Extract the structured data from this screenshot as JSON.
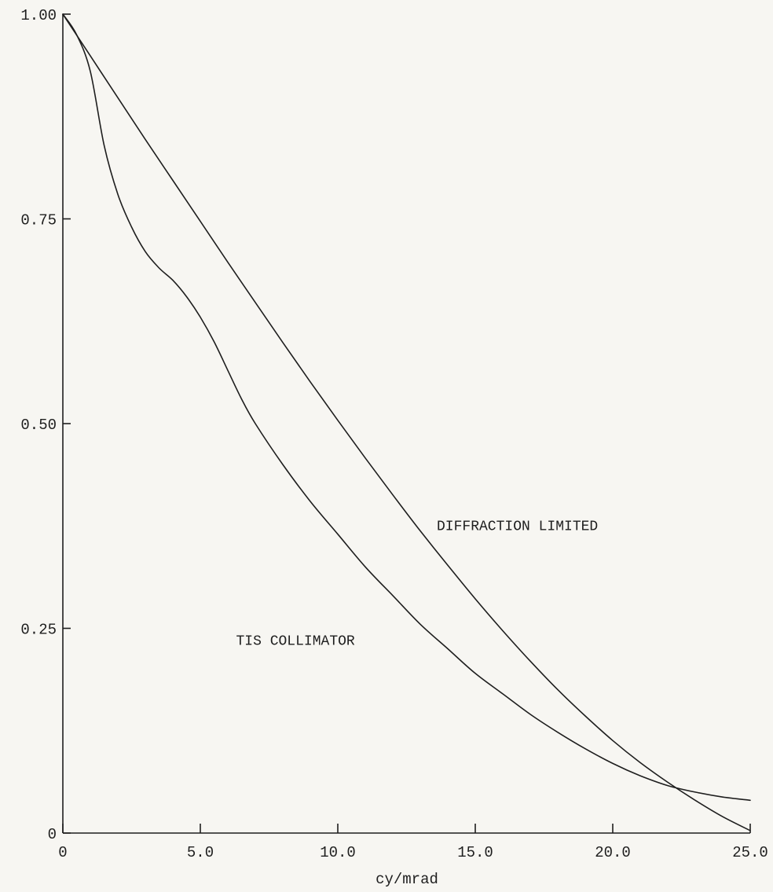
{
  "chart_data": {
    "type": "line",
    "title": "",
    "xlabel": "cy/mrad",
    "ylabel": "",
    "xlim": [
      0,
      25
    ],
    "ylim": [
      0,
      1
    ],
    "grid": false,
    "x_ticks": [
      {
        "value": 0,
        "label": "0"
      },
      {
        "value": 5,
        "label": "5.0"
      },
      {
        "value": 10,
        "label": "10.0"
      },
      {
        "value": 15,
        "label": "15.0"
      },
      {
        "value": 20,
        "label": "20.0"
      },
      {
        "value": 25,
        "label": "25.0"
      }
    ],
    "y_ticks": [
      {
        "value": 0,
        "label": "0"
      },
      {
        "value": 0.25,
        "label": "0.25"
      },
      {
        "value": 0.5,
        "label": "0.50"
      },
      {
        "value": 0.75,
        "label": "0.75"
      },
      {
        "value": 1.0,
        "label": "1.00"
      }
    ],
    "series": [
      {
        "label": "DIFFRACTION LIMITED",
        "label_at": [
          13.6,
          0.37
        ],
        "x": [
          0,
          1,
          2,
          3,
          4,
          5,
          6,
          7,
          8,
          9,
          10,
          11,
          12,
          13,
          14,
          15,
          16,
          17,
          18,
          19,
          20,
          21,
          22,
          23,
          24,
          25
        ],
        "y": [
          1.0,
          0.949,
          0.898,
          0.847,
          0.797,
          0.747,
          0.697,
          0.648,
          0.599,
          0.551,
          0.504,
          0.458,
          0.413,
          0.369,
          0.327,
          0.286,
          0.247,
          0.21,
          0.175,
          0.143,
          0.113,
          0.086,
          0.062,
          0.04,
          0.02,
          0.003
        ]
      },
      {
        "label": "TIS COLLIMATOR",
        "label_at": [
          6.3,
          0.23
        ],
        "x": [
          0,
          0.5,
          1.0,
          1.5,
          2.0,
          2.5,
          3.0,
          3.5,
          4.0,
          4.5,
          5.0,
          5.5,
          6.0,
          6.5,
          7.0,
          8.0,
          9.0,
          10.0,
          11.0,
          12.0,
          13.0,
          14.0,
          15.0,
          16.0,
          17.0,
          18.0,
          19.0,
          20.0,
          21.0,
          22.0,
          23.0,
          24.0,
          25.0
        ],
        "y": [
          1.0,
          0.975,
          0.93,
          0.84,
          0.78,
          0.74,
          0.71,
          0.69,
          0.675,
          0.655,
          0.63,
          0.6,
          0.565,
          0.53,
          0.5,
          0.45,
          0.405,
          0.365,
          0.325,
          0.29,
          0.255,
          0.225,
          0.195,
          0.17,
          0.145,
          0.123,
          0.103,
          0.085,
          0.07,
          0.058,
          0.05,
          0.044,
          0.04
        ]
      }
    ]
  }
}
